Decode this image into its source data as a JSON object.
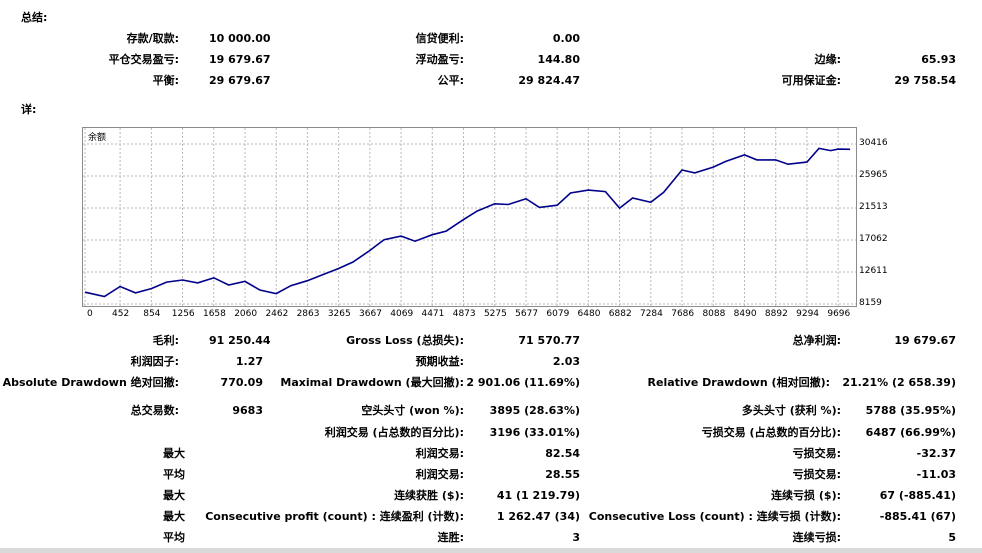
{
  "summary_title": "总结:",
  "summary": {
    "deposit_label": "存款/取款:",
    "deposit_value": "10 000.00",
    "credit_label": "信贷便利:",
    "credit_value": "0.00",
    "closed_pl_label": "平仓交易盈亏:",
    "closed_pl_value": "19 679.67",
    "floating_pl_label": "浮动盈亏:",
    "floating_pl_value": "144.80",
    "margin_label": "边缘:",
    "margin_value": "65.93",
    "balance_label": "平衡:",
    "balance_value": "29 679.67",
    "equity_label": "公平:",
    "equity_value": "29 824.47",
    "free_margin_label": "可用保证金:",
    "free_margin_value": "29 758.54"
  },
  "details_title": "详:",
  "chart_data": {
    "type": "line",
    "title": "余额",
    "x_ticks": [
      "0",
      "452",
      "854",
      "1256",
      "1658",
      "2060",
      "2462",
      "2863",
      "3265",
      "3667",
      "4069",
      "4471",
      "4873",
      "5275",
      "5677",
      "6079",
      "6480",
      "6882",
      "7284",
      "7686",
      "8088",
      "8490",
      "8892",
      "9294",
      "9696"
    ],
    "y_ticks": [
      "30416",
      "25965",
      "21513",
      "17062",
      "12611",
      "8159"
    ],
    "xlim": [
      0,
      9900
    ],
    "ylim": [
      8159,
      30416
    ],
    "series": [
      {
        "name": "余额",
        "color": "#00008b",
        "x": [
          0,
          250,
          452,
          650,
          854,
          1050,
          1256,
          1450,
          1658,
          1850,
          2060,
          2250,
          2462,
          2650,
          2863,
          3050,
          3265,
          3450,
          3667,
          3850,
          4069,
          4250,
          4471,
          4650,
          4873,
          5050,
          5275,
          5450,
          5677,
          5850,
          6079,
          6250,
          6480,
          6700,
          6882,
          7050,
          7284,
          7450,
          7686,
          7850,
          8088,
          8250,
          8490,
          8650,
          8892,
          9050,
          9294,
          9450,
          9600,
          9696,
          9850
        ],
        "y": [
          9800,
          9200,
          10600,
          9700,
          10300,
          11200,
          11500,
          11100,
          11800,
          10800,
          11300,
          10100,
          9600,
          10700,
          11400,
          12200,
          13100,
          14000,
          15600,
          17100,
          17600,
          16900,
          17800,
          18300,
          19900,
          21100,
          22100,
          22000,
          22800,
          21600,
          21900,
          23600,
          24000,
          23800,
          21500,
          22900,
          22300,
          23700,
          26800,
          26400,
          27200,
          28000,
          28900,
          28200,
          28200,
          27600,
          27900,
          29800,
          29500,
          29700,
          29680
        ]
      }
    ]
  },
  "stats": {
    "gross_profit_label": "毛利:",
    "gross_profit_value": "91 250.44",
    "gross_loss_label": "Gross Loss (总损失):",
    "gross_loss_value": "71 570.77",
    "net_profit_label": "总净利润:",
    "net_profit_value": "19 679.67",
    "profit_factor_label": "利润因子:",
    "profit_factor_value": "1.27",
    "expected_payoff_label": "预期收益:",
    "expected_payoff_value": "2.03",
    "abs_dd_label": "Absolute Drawdown 绝对回撤:",
    "abs_dd_value": "770.09",
    "max_dd_label": "Maximal Drawdown (最大回撤):",
    "max_dd_value": "2 901.06 (11.69%)",
    "rel_dd_label": "Relative Drawdown (相对回撤):",
    "rel_dd_value": "21.21% (2 658.39)",
    "total_trades_label": "总交易数:",
    "total_trades_value": "9683",
    "short_label": "空头头寸 (won %):",
    "short_value": "3895 (28.63%)",
    "long_label": "多头头寸 (获利 %):",
    "long_value": "5788 (35.95%)",
    "profit_trades_label": "利润交易 (占总数的百分比):",
    "profit_trades_value": "3196 (33.01%)",
    "loss_trades_label": "亏损交易 (占总数的百分比):",
    "loss_trades_value": "6487 (66.99%)",
    "largest_label": "最大",
    "largest_profit_label": "利润交易:",
    "largest_profit_value": "82.54",
    "largest_loss_label": "亏损交易:",
    "largest_loss_value": "-32.37",
    "average_label": "平均",
    "avg_profit_label": "利润交易:",
    "avg_profit_value": "28.55",
    "avg_loss_label": "亏损交易:",
    "avg_loss_value": "-11.03",
    "max_label": "最大",
    "max_cons_wins_label": "连续获胜 ($):",
    "max_cons_wins_value": "41 (1 219.79)",
    "max_cons_losses_label": "连续亏损 ($):",
    "max_cons_losses_value": "67 (-885.41)",
    "max2_label": "最大",
    "max_cons_profit_label": "Consecutive profit (count) : 连续盈利 (计数):",
    "max_cons_profit_value": "1 262.47 (34)",
    "max_cons_loss_label": "Consecutive Loss (count) : 连续亏损 (计数):",
    "max_cons_loss_value": "-885.41 (67)",
    "avg2_label": "平均",
    "avg_cons_wins_label": "连胜:",
    "avg_cons_wins_value": "3",
    "avg_cons_losses_label": "连续亏损:",
    "avg_cons_losses_value": "5"
  }
}
